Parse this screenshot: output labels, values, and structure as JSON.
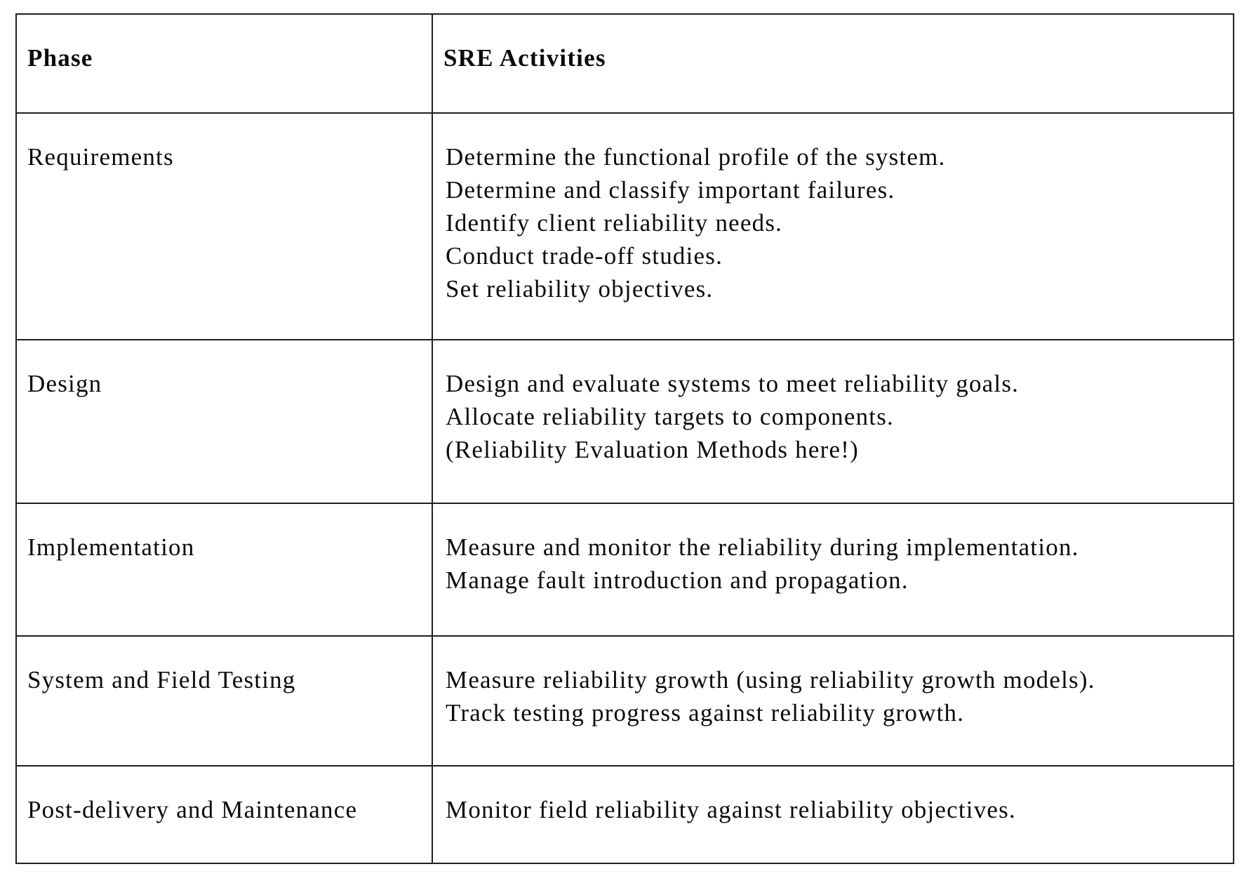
{
  "theme": {
    "bg": "#ffffff",
    "fg": "#0b0b0b",
    "border": "#1f1f1f"
  },
  "table": {
    "header": {
      "phase": "Phase",
      "activities": "SRE Activities"
    },
    "rows": [
      {
        "phase": "Requirements",
        "activities": [
          "Determine the functional profile of the system.",
          "Determine and classify important failures.",
          "Identify client reliability needs.",
          "Conduct trade-off studies.",
          "Set reliability objectives."
        ]
      },
      {
        "phase": "Design",
        "activities": [
          "Design and evaluate systems to meet reliability goals.",
          "Allocate reliability targets to components.",
          "(Reliability Evaluation Methods here!)"
        ]
      },
      {
        "phase": "Implementation",
        "activities": [
          "Measure and monitor the reliability during implementation.",
          "Manage fault introduction and propagation."
        ]
      },
      {
        "phase": "System and Field Testing",
        "activities": [
          "Measure reliability growth (using reliability growth models).",
          "Track testing progress against reliability growth."
        ]
      },
      {
        "phase": "Post-delivery and Maintenance",
        "activities": [
          "Monitor field reliability against reliability objectives."
        ]
      }
    ]
  }
}
